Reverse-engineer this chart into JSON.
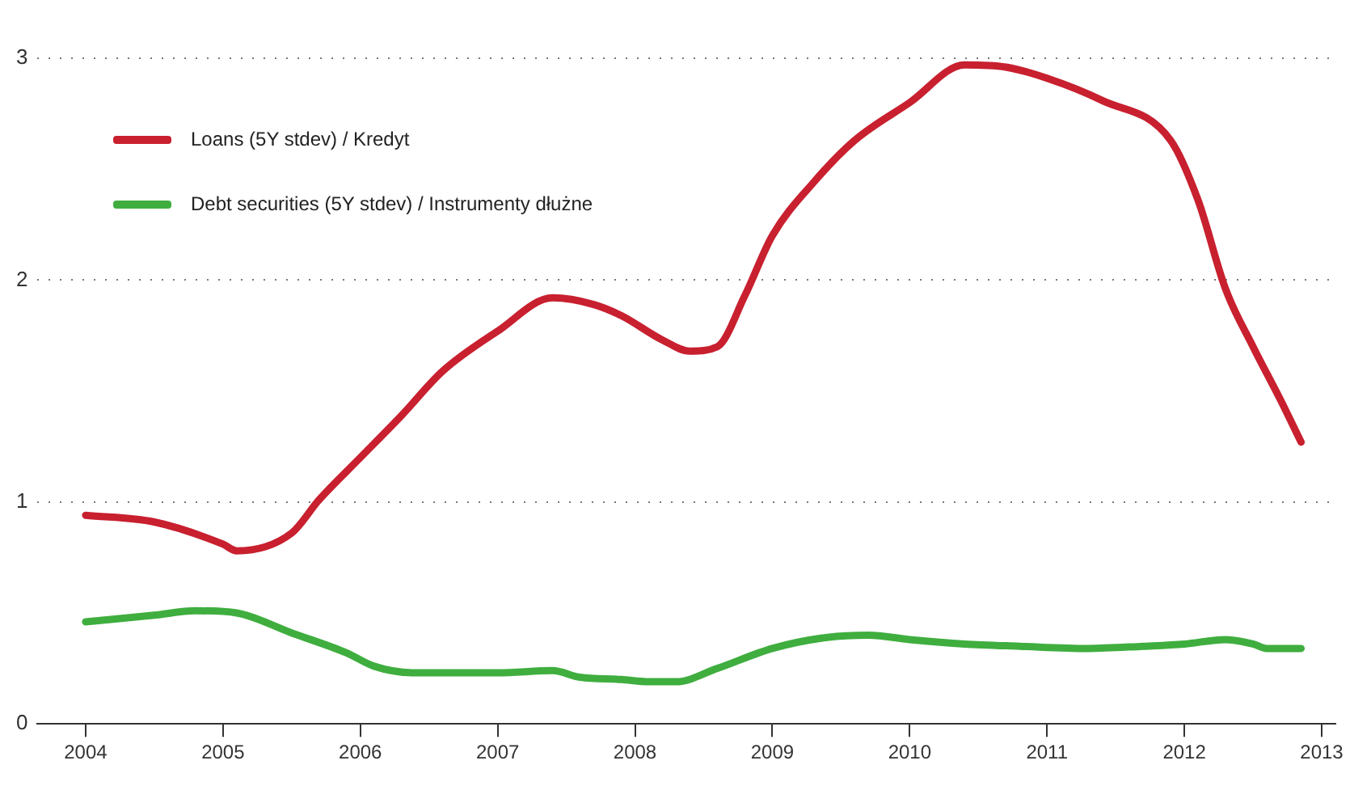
{
  "chart_data": {
    "type": "line",
    "xlim": [
      2003.65,
      2013.1
    ],
    "xticks": [
      2004,
      2005,
      2006,
      2007,
      2008,
      2009,
      2010,
      2011,
      2012,
      2013
    ],
    "ylim": [
      0,
      3
    ],
    "yticks": [
      0,
      1,
      2,
      3
    ],
    "grid": "y",
    "legend": "top left",
    "marker": "none",
    "line_style": "solid",
    "series": [
      {
        "name": "Loans (5Y stdev) / Kredyt",
        "color": "#c8202f",
        "x": [
          2004.0,
          2004.5,
          2005.0,
          2005.1,
          2005.5,
          2005.7,
          2006.0,
          2006.3,
          2006.6,
          2007.0,
          2007.4,
          2007.7,
          2007.9,
          2008.2,
          2008.4,
          2008.6,
          2008.8,
          2009.0,
          2009.3,
          2009.6,
          2010.0,
          2010.4,
          2010.7,
          2011.0,
          2011.4,
          2011.9,
          2012.1,
          2012.3,
          2012.5,
          2012.7,
          2012.85
        ],
        "values": [
          0.94,
          0.91,
          0.81,
          0.78,
          0.86,
          1.01,
          1.2,
          1.39,
          1.59,
          1.77,
          1.92,
          1.89,
          1.84,
          1.73,
          1.68,
          1.7,
          1.93,
          2.2,
          2.44,
          2.63,
          2.8,
          2.97,
          2.96,
          2.91,
          2.81,
          2.63,
          2.36,
          1.96,
          1.7,
          1.46,
          1.27
        ]
      },
      {
        "name": "Debt securities (5Y stdev) / Instrumenty dłużne",
        "color": "#3fae3f",
        "x": [
          2004.0,
          2004.5,
          2004.8,
          2005.1,
          2005.5,
          2005.9,
          2006.1,
          2006.4,
          2007.0,
          2007.4,
          2007.6,
          2007.9,
          2008.1,
          2008.3,
          2008.6,
          2009.0,
          2009.4,
          2009.7,
          2010.0,
          2010.4,
          2010.8,
          2011.3,
          2011.7,
          2012.0,
          2012.3,
          2012.5,
          2012.6,
          2012.85
        ],
        "values": [
          0.46,
          0.49,
          0.51,
          0.5,
          0.41,
          0.32,
          0.26,
          0.23,
          0.23,
          0.24,
          0.21,
          0.2,
          0.19,
          0.19,
          0.25,
          0.34,
          0.39,
          0.4,
          0.38,
          0.36,
          0.35,
          0.34,
          0.35,
          0.36,
          0.38,
          0.36,
          0.34,
          0.34
        ]
      }
    ]
  }
}
